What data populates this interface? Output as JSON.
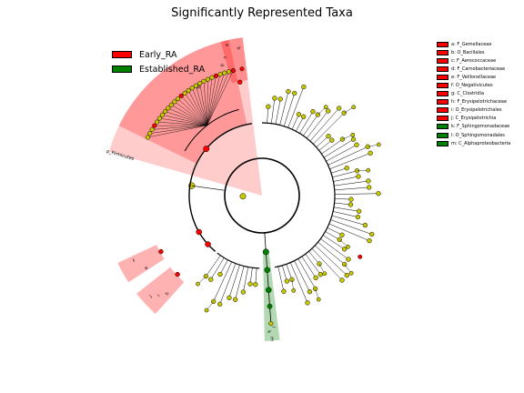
{
  "title": "Significantly Represented Taxa",
  "colors": {
    "Early_RA": "#ff0000",
    "Established_RA": "#008000",
    "node": "#c8c800"
  },
  "group_legend": [
    {
      "name": "Early_RA",
      "color": "#ff0000"
    },
    {
      "name": "Established_RA",
      "color": "#008000"
    }
  ],
  "taxa_legend": [
    {
      "key": "a",
      "label": "a: F_Gemellaceae",
      "group": "Early_RA"
    },
    {
      "key": "b",
      "label": "b: O_Bacillales",
      "group": "Early_RA"
    },
    {
      "key": "c",
      "label": "c: F_Aerococcaceae",
      "group": "Early_RA"
    },
    {
      "key": "d",
      "label": "d: F_Carnobacteriaceae",
      "group": "Early_RA"
    },
    {
      "key": "e",
      "label": "e: F_Veillonellaceae",
      "group": "Early_RA"
    },
    {
      "key": "f",
      "label": "f: O_Negativicutes",
      "group": "Early_RA"
    },
    {
      "key": "g",
      "label": "g: C_Clostridia",
      "group": "Early_RA"
    },
    {
      "key": "h",
      "label": "h: F_Erysipelotrichaceae",
      "group": "Early_RA"
    },
    {
      "key": "i",
      "label": "i: O_Erysipelotrichales",
      "group": "Early_RA"
    },
    {
      "key": "j",
      "label": "j: C_Erysipelotrichia",
      "group": "Early_RA"
    },
    {
      "key": "k",
      "label": "k: F_Sphingomonadaceae",
      "group": "Established_RA"
    },
    {
      "key": "l",
      "label": "l: O_Sphingomonadales",
      "group": "Established_RA"
    },
    {
      "key": "m",
      "label": "m: C_Alphaproteobacteria",
      "group": "Established_RA"
    }
  ],
  "phylum_label": "p_Firmicutes",
  "highlighted_clades": [
    {
      "letter": "a",
      "group": "Early_RA"
    },
    {
      "letter": "b",
      "group": "Early_RA"
    },
    {
      "letter": "c",
      "group": "Early_RA"
    },
    {
      "letter": "d",
      "group": "Early_RA"
    },
    {
      "letter": "e",
      "group": "Early_RA"
    },
    {
      "letter": "f",
      "group": "Early_RA"
    },
    {
      "letter": "g",
      "group": "Early_RA"
    },
    {
      "letter": "h",
      "group": "Early_RA"
    },
    {
      "letter": "i",
      "group": "Early_RA"
    },
    {
      "letter": "j",
      "group": "Early_RA"
    },
    {
      "letter": "k",
      "group": "Established_RA"
    },
    {
      "letter": "l",
      "group": "Established_RA"
    },
    {
      "letter": "m",
      "group": "Established_RA"
    }
  ]
}
